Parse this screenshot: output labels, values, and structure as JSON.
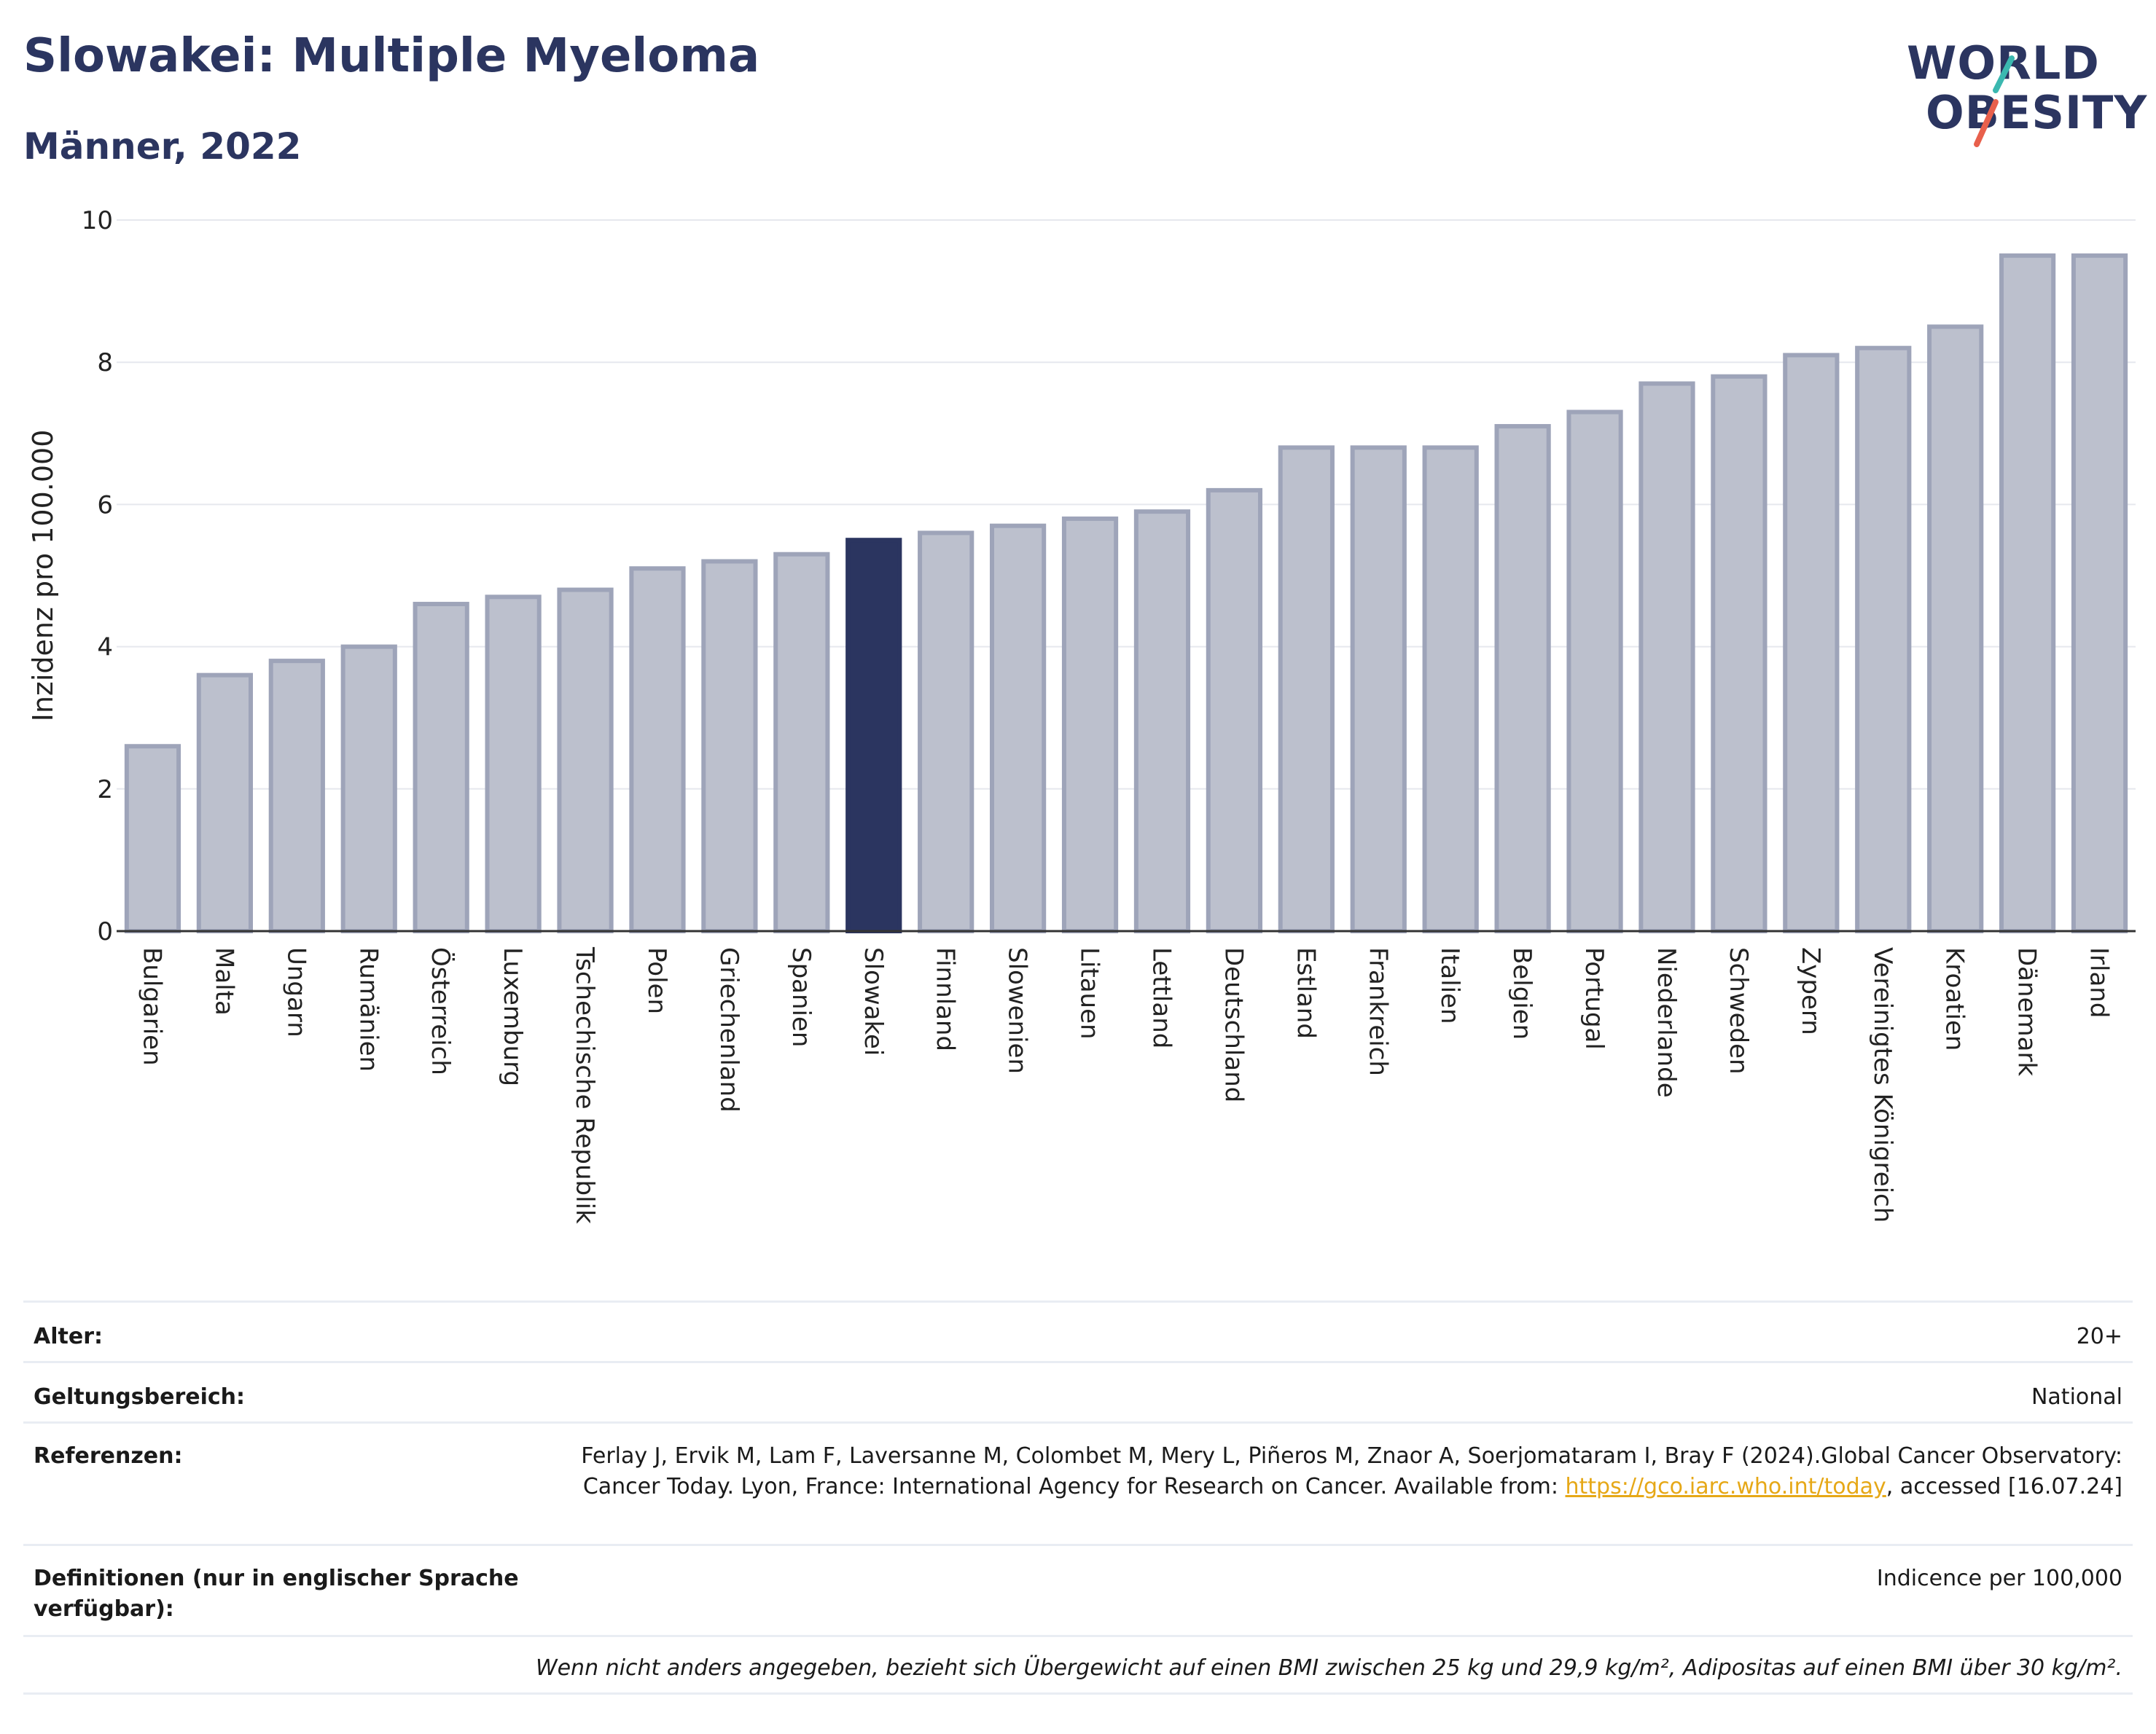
{
  "header": {
    "title": "Slowakei: Multiple Myeloma",
    "subtitle": "Männer, 2022"
  },
  "logo": {
    "line1": "WORLD",
    "line2": "OBESITY",
    "accent_teal": "#3bb8b0",
    "accent_red": "#e8604c"
  },
  "chart_data": {
    "type": "bar",
    "ylabel": "Inzidenz pro 100.000",
    "ylim": [
      0,
      10
    ],
    "yticks": [
      0,
      2,
      4,
      6,
      8,
      10
    ],
    "grid": true,
    "highlight": "Slowakei",
    "highlight_color": "#2b3560",
    "bar_color": "#bcc0cd",
    "bar_edge_color": "#9ea4b9",
    "categories": [
      "Bulgarien",
      "Malta",
      "Ungarn",
      "Rumänien",
      "Österreich",
      "Luxemburg",
      "Tschechische Republik",
      "Polen",
      "Griechenland",
      "Spanien",
      "Slowakei",
      "Finnland",
      "Slowenien",
      "Litauen",
      "Lettland",
      "Deutschland",
      "Estland",
      "Frankreich",
      "Italien",
      "Belgien",
      "Portugal",
      "Niederlande",
      "Schweden",
      "Zypern",
      "Vereinigtes Königreich",
      "Kroatien",
      "Dänemark",
      "Irland"
    ],
    "values": [
      2.6,
      3.6,
      3.8,
      4.0,
      4.6,
      4.7,
      4.8,
      5.1,
      5.2,
      5.3,
      5.5,
      5.6,
      5.7,
      5.8,
      5.9,
      6.2,
      6.8,
      6.8,
      6.8,
      7.1,
      7.3,
      7.7,
      7.8,
      8.1,
      8.2,
      8.5,
      9.5,
      9.5
    ]
  },
  "info": {
    "age_label": "Alter:",
    "age_value": "20+",
    "scope_label": "Geltungsbereich:",
    "scope_value": "National",
    "ref_label": "Referenzen:",
    "ref_text_1": "Ferlay J, Ervik M, Lam F, Laversanne M, Colombet M, Mery L, Piñeros M, Znaor A, Soerjomataram I, Bray F (2024).Global Cancer Observatory: Cancer Today. Lyon, France: International Agency for Research on Cancer. Available from: ",
    "ref_link": "https://gco.iarc.who.int/today",
    "ref_text_2": ", accessed [16.07.24]",
    "def_label": "Definitionen (nur in englischer Sprache verfügbar):",
    "def_value": "Indicence per 100,000",
    "note": "Wenn nicht anders angegeben, bezieht sich Übergewicht auf einen BMI zwischen 25 kg und 29,9 kg/m², Adipositas auf einen BMI über 30 kg/m²."
  }
}
